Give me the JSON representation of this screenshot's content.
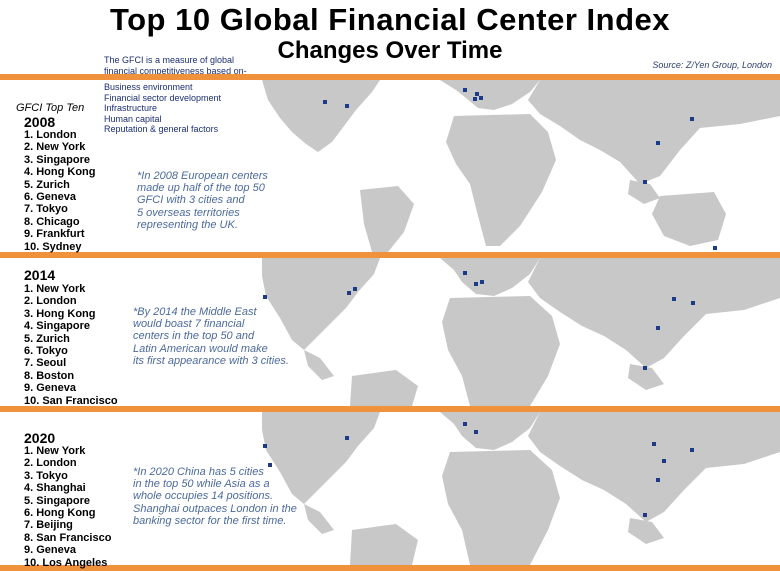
{
  "title": "Top 10 Global Financial Center Index",
  "subtitle": "Changes Over Time",
  "source": "Source: Z/Yen Group, London",
  "description": {
    "intro_line1": "The GFCI is a measure of global",
    "intro_line2": "financial competitiveness based on-",
    "factors": [
      "Business environment",
      "Financial sector development",
      "Infrastructure",
      "Human capital",
      "Reputation & general factors"
    ]
  },
  "sidebar_label": "GFCI Top Ten",
  "colors": {
    "band": "#f0913c",
    "land": "#c8c8c8",
    "marker": "#1c3a86",
    "note": "#4c6a9c",
    "intro": "#1b2e74"
  },
  "panels": [
    {
      "year": "2008",
      "rankings": [
        "1. London",
        "2. New York",
        "3. Singapore",
        "4. Hong Kong",
        "5. Zurich",
        "6. Geneva",
        "7. Tokyo",
        "8. Chicago",
        "9. Frankfurt",
        "10. Sydney"
      ],
      "note_lines": [
        "*In 2008 European centers",
        "made up half of the top 50",
        "GFCI with 3 cities and",
        "5 overseas territories",
        "representing the UK."
      ]
    },
    {
      "year": "2014",
      "rankings": [
        "1. New York",
        "2. London",
        "3. Hong Kong",
        "4. Singapore",
        "5. Zurich",
        "6. Tokyo",
        "7. Seoul",
        "8. Boston",
        "9. Geneva",
        "10. San Francisco"
      ],
      "note_lines": [
        "*By 2014 the Middle East",
        "would boast 7 financial",
        "centers in the top 50 and",
        "Latin American would make",
        "its first appearance with 3 cities."
      ]
    },
    {
      "year": "2020",
      "rankings": [
        "1. New York",
        "2. London",
        "3. Tokyo",
        "4. Shanghai",
        "5. Singapore",
        "6. Hong Kong",
        "7. Beijing",
        "8. San Francisco",
        "9. Geneva",
        "10. Los Angeles"
      ],
      "note_lines": [
        "*In 2020 China has 5 cities",
        "in the top 50 while Asia as a",
        "whole occupies 14 positions.",
        "Shanghai outpaces London in the",
        "banking sector for the first time."
      ]
    }
  ]
}
